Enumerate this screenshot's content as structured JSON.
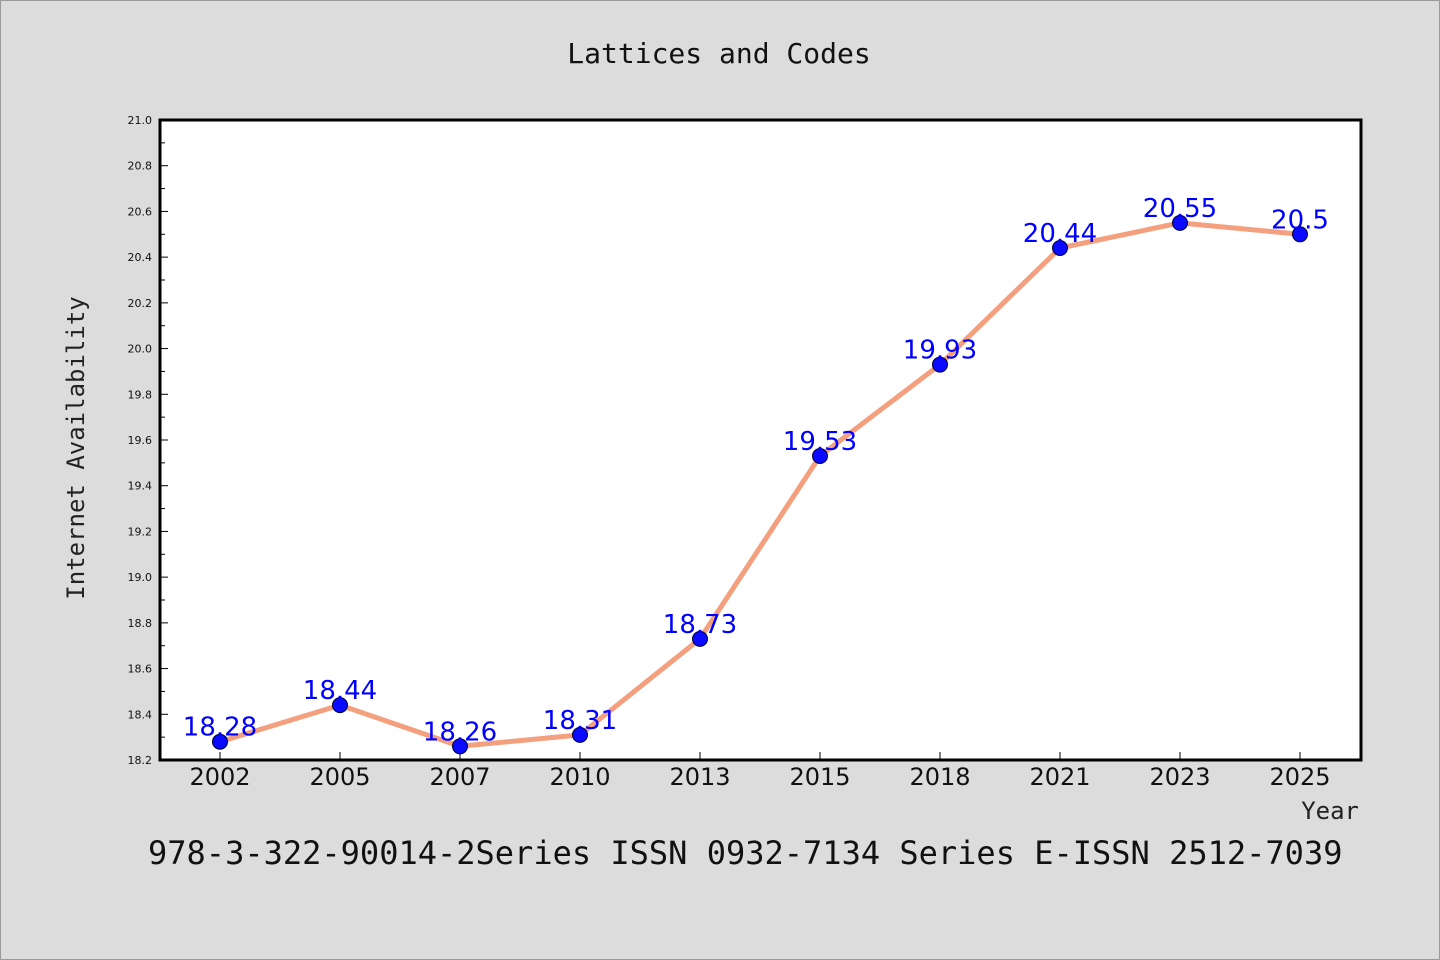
{
  "chart_data": {
    "type": "line",
    "title": "Lattices and Codes",
    "xlabel": "Year",
    "ylabel": "Internet Availability",
    "categories": [
      "2002",
      "2005",
      "2007",
      "2010",
      "2013",
      "2015",
      "2018",
      "2021",
      "2023",
      "2025"
    ],
    "series": [
      {
        "values": [
          18.28,
          18.44,
          18.26,
          18.31,
          18.73,
          19.53,
          19.93,
          20.44,
          20.55,
          20.5
        ],
        "data_labels": [
          "18.28",
          "18.44",
          "18.26",
          "18.31",
          "18.73",
          "19.53",
          "19.93",
          "20.44",
          "20.55",
          "20.5"
        ]
      }
    ],
    "ylim": [
      18.2,
      21.0
    ],
    "yticks": [
      "18.2",
      "18.4",
      "18.6",
      "18.8",
      "19.0",
      "19.2",
      "19.4",
      "19.6",
      "19.8",
      "20.0",
      "20.2",
      "20.4",
      "20.6",
      "20.8",
      "21.0"
    ],
    "grid": false,
    "legend": "none",
    "colors": {
      "line": "#f4a07e",
      "marker": "#0a0aff",
      "data_label": "#0000ff",
      "background": "#dcdcdc",
      "plot_area": "#ffffff"
    }
  },
  "footer": "978-3-322-90014-2Series ISSN 0932-7134 Series E-ISSN 2512-7039"
}
